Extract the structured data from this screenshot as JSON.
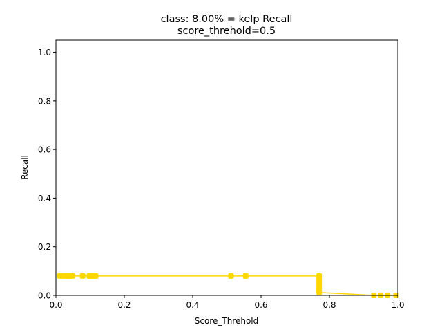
{
  "chart_data": {
    "type": "line",
    "title_lines": [
      "class: 8.00% = kelp Recall",
      "score_threhold=0.5"
    ],
    "xlabel": "Score_Threhold",
    "ylabel": "Recall",
    "xlim": [
      0.0,
      1.0
    ],
    "ylim": [
      0.0,
      1.05
    ],
    "xticks": [
      "0.0",
      "0.2",
      "0.4",
      "0.6",
      "0.8",
      "1.0"
    ],
    "yticks": [
      "0.0",
      "0.2",
      "0.4",
      "0.6",
      "0.8",
      "1.0"
    ],
    "grid": false,
    "color": "#FFD700",
    "series": [
      {
        "x": [
          0.012,
          0.018,
          0.03,
          0.036,
          0.042,
          0.048,
          0.078,
          0.098,
          0.104,
          0.11,
          0.116,
          0.512,
          0.555,
          0.77,
          0.77,
          0.77,
          0.77,
          0.77,
          0.77,
          0.93,
          0.95,
          0.97,
          0.995
        ],
        "y": [
          0.08,
          0.08,
          0.08,
          0.08,
          0.08,
          0.08,
          0.08,
          0.08,
          0.08,
          0.08,
          0.08,
          0.08,
          0.08,
          0.08,
          0.065,
          0.05,
          0.035,
          0.025,
          0.012,
          0.0,
          0.0,
          0.0,
          0.0
        ]
      }
    ]
  }
}
